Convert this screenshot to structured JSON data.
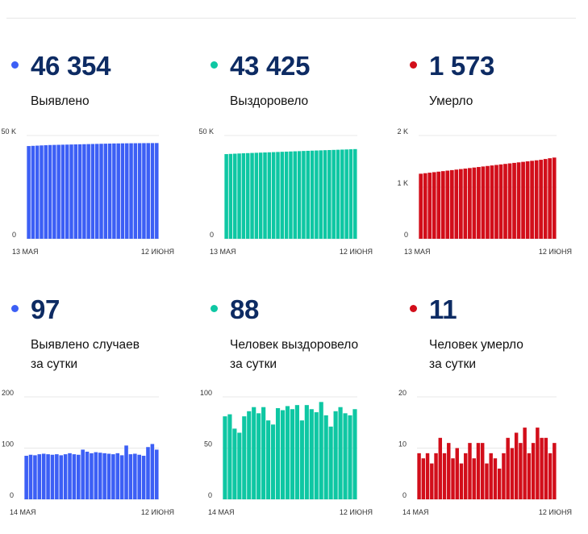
{
  "colors": {
    "blue": "#3c5ff5",
    "green": "#0ec7a3",
    "red": "#d20e1a",
    "grid": "#e8e8e8"
  },
  "panels": [
    {
      "value": "46 354",
      "label_lines": [
        "Выявлено"
      ],
      "color": "blue",
      "chart_data": {
        "type": "bar",
        "x_start_label": "13 МАЯ",
        "x_end_label": "12 ИЮНЯ",
        "y_ticks": [
          {
            "v": 0,
            "label": "0"
          },
          {
            "v": 50000,
            "label": "50 K"
          }
        ],
        "ylim": [
          0,
          50000
        ],
        "values": [
          44900,
          45000,
          45100,
          45200,
          45300,
          45400,
          45450,
          45500,
          45550,
          45600,
          45650,
          45700,
          45750,
          45800,
          45850,
          45900,
          45950,
          46000,
          46050,
          46100,
          46150,
          46180,
          46210,
          46230,
          46250,
          46270,
          46290,
          46310,
          46330,
          46340,
          46354
        ]
      }
    },
    {
      "value": "43 425",
      "label_lines": [
        "Выздоровело"
      ],
      "color": "green",
      "chart_data": {
        "type": "bar",
        "x_start_label": "13 МАЯ",
        "x_end_label": "12 ИЮНЯ",
        "y_ticks": [
          {
            "v": 0,
            "label": "0"
          },
          {
            "v": 50000,
            "label": "50 K"
          }
        ],
        "ylim": [
          0,
          50000
        ],
        "values": [
          41000,
          41100,
          41200,
          41300,
          41400,
          41480,
          41560,
          41640,
          41720,
          41800,
          41880,
          41960,
          42040,
          42120,
          42200,
          42280,
          42360,
          42440,
          42520,
          42600,
          42680,
          42750,
          42820,
          42900,
          42970,
          43040,
          43110,
          43180,
          43250,
          43340,
          43425
        ]
      }
    },
    {
      "value": "1 573",
      "label_lines": [
        "Умерло"
      ],
      "color": "red",
      "chart_data": {
        "type": "bar",
        "x_start_label": "13 МАЯ",
        "x_end_label": "12 ИЮНЯ",
        "y_ticks": [
          {
            "v": 0,
            "label": "0"
          },
          {
            "v": 1000,
            "label": "1 K"
          },
          {
            "v": 2000,
            "label": "2 K"
          }
        ],
        "ylim": [
          0,
          2000
        ],
        "values": [
          1260,
          1270,
          1280,
          1290,
          1300,
          1310,
          1320,
          1330,
          1340,
          1350,
          1360,
          1370,
          1380,
          1390,
          1400,
          1410,
          1420,
          1430,
          1440,
          1450,
          1460,
          1470,
          1480,
          1490,
          1500,
          1510,
          1520,
          1530,
          1545,
          1560,
          1573
        ]
      }
    },
    {
      "value": "97",
      "label_lines": [
        "Выявлено случаев",
        "за сутки"
      ],
      "color": "blue",
      "chart_data": {
        "type": "bar",
        "x_start_label": "14 МАЯ",
        "x_end_label": "12 ИЮНЯ",
        "y_ticks": [
          {
            "v": 0,
            "label": "0"
          },
          {
            "v": 100,
            "label": "100"
          },
          {
            "v": 200,
            "label": "200"
          }
        ],
        "ylim": [
          0,
          200
        ],
        "values": [
          85,
          87,
          86,
          88,
          89,
          88,
          87,
          88,
          86,
          88,
          90,
          88,
          87,
          97,
          93,
          90,
          92,
          91,
          90,
          89,
          88,
          90,
          86,
          105,
          88,
          89,
          87,
          85,
          102,
          108,
          97
        ]
      }
    },
    {
      "value": "88",
      "label_lines": [
        "Человек выздоровело",
        "за сутки"
      ],
      "color": "green",
      "chart_data": {
        "type": "bar",
        "x_start_label": "14 МАЯ",
        "x_end_label": "12 ИЮНЯ",
        "y_ticks": [
          {
            "v": 0,
            "label": "0"
          },
          {
            "v": 50,
            "label": "50"
          },
          {
            "v": 100,
            "label": "100"
          }
        ],
        "ylim": [
          0,
          100
        ],
        "values": [
          81,
          83,
          69,
          65,
          81,
          86,
          90,
          84,
          90,
          77,
          73,
          89,
          87,
          91,
          88,
          92,
          77,
          92,
          88,
          85,
          95,
          82,
          71,
          86,
          90,
          84,
          82,
          88
        ]
      }
    },
    {
      "value": "11",
      "label_lines": [
        "Человек умерло",
        "за сутки"
      ],
      "color": "red",
      "chart_data": {
        "type": "bar",
        "x_start_label": "14 МАЯ",
        "x_end_label": "12 ИЮНЯ",
        "y_ticks": [
          {
            "v": 0,
            "label": "0"
          },
          {
            "v": 10,
            "label": "10"
          },
          {
            "v": 20,
            "label": "20"
          }
        ],
        "ylim": [
          0,
          20
        ],
        "values": [
          9,
          8,
          9,
          7,
          9,
          12,
          9,
          11,
          8,
          10,
          7,
          9,
          11,
          8,
          11,
          11,
          7,
          9,
          8,
          6,
          9,
          12,
          10,
          13,
          11,
          14,
          9,
          11,
          14,
          12,
          12,
          9,
          11
        ]
      }
    }
  ]
}
